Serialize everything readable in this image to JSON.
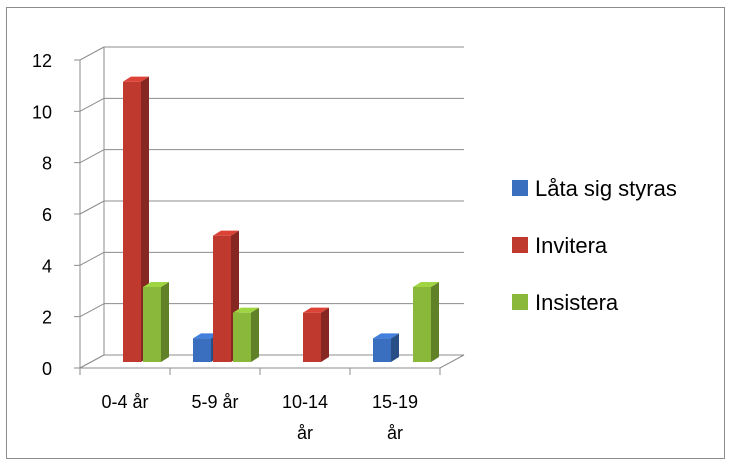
{
  "chart_data": {
    "type": "bar",
    "title": "",
    "xlabel": "",
    "ylabel": "",
    "categories": [
      [
        "0-4 år"
      ],
      [
        "5-9 år"
      ],
      [
        "10-14",
        "år"
      ],
      [
        "15-19",
        "år"
      ]
    ],
    "series": [
      {
        "name": "Låta sig styras",
        "values": [
          0,
          1,
          0,
          1
        ],
        "color": "#3a6fc0"
      },
      {
        "name": "Invitera",
        "values": [
          11,
          5,
          2,
          0
        ],
        "color": "#c0392f"
      },
      {
        "name": "Insistera",
        "values": [
          3,
          2,
          0,
          3
        ],
        "color": "#8ab83a"
      }
    ],
    "ylim": [
      0,
      12
    ],
    "yticks": [
      0,
      2,
      4,
      6,
      8,
      10,
      12
    ],
    "grid": true,
    "three_d": true,
    "legend_position": "right"
  }
}
